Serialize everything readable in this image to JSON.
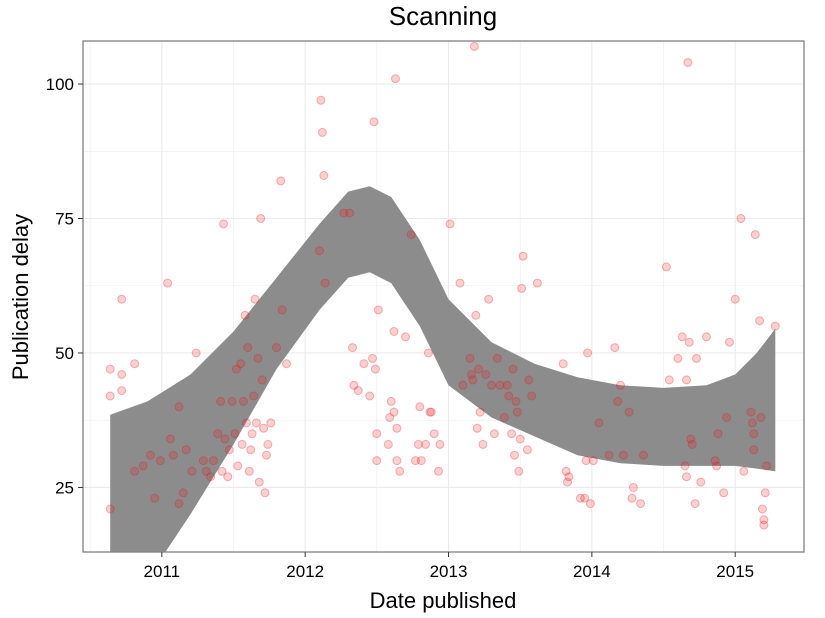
{
  "chart_data": {
    "type": "scatter",
    "title": "Scanning",
    "xlabel": "Date published",
    "ylabel": "Publication delay",
    "xlim": [
      2010.45,
      2015.48
    ],
    "ylim": [
      13,
      108
    ],
    "x_ticks": [
      2011,
      2012,
      2013,
      2014,
      2015
    ],
    "x_tick_labels": [
      "2011",
      "2012",
      "2013",
      "2014",
      "2015"
    ],
    "y_ticks": [
      25,
      50,
      75,
      100
    ],
    "y_tick_labels": [
      "25",
      "50",
      "75",
      "100"
    ],
    "grid": true,
    "colors": {
      "points": "#e8141b",
      "band": "#8c8c8c",
      "grid": "#ebebeb",
      "panel_border": "#7f7f7f"
    },
    "series": [
      {
        "points": [
          [
            2010.64,
            21
          ],
          [
            2010.64,
            47
          ],
          [
            2010.64,
            42
          ],
          [
            2010.72,
            46
          ],
          [
            2010.72,
            43
          ],
          [
            2010.72,
            60
          ],
          [
            2010.81,
            48
          ],
          [
            2010.81,
            28
          ],
          [
            2010.87,
            29
          ],
          [
            2010.92,
            31
          ],
          [
            2010.95,
            23
          ],
          [
            2010.99,
            30
          ],
          [
            2011.04,
            63
          ],
          [
            2011.06,
            34
          ],
          [
            2011.08,
            31
          ],
          [
            2011.12,
            40
          ],
          [
            2011.12,
            22
          ],
          [
            2011.15,
            24
          ],
          [
            2011.17,
            32
          ],
          [
            2011.21,
            28
          ],
          [
            2011.24,
            50
          ],
          [
            2011.29,
            30
          ],
          [
            2011.31,
            28
          ],
          [
            2011.34,
            27
          ],
          [
            2011.36,
            30
          ],
          [
            2011.39,
            35
          ],
          [
            2011.41,
            41
          ],
          [
            2011.42,
            28
          ],
          [
            2011.43,
            74
          ],
          [
            2011.44,
            34
          ],
          [
            2011.46,
            27
          ],
          [
            2011.47,
            32
          ],
          [
            2011.49,
            41
          ],
          [
            2011.51,
            35
          ],
          [
            2011.52,
            47
          ],
          [
            2011.53,
            29
          ],
          [
            2011.55,
            48
          ],
          [
            2011.56,
            33
          ],
          [
            2011.57,
            41
          ],
          [
            2011.58,
            57
          ],
          [
            2011.59,
            37
          ],
          [
            2011.6,
            51
          ],
          [
            2011.61,
            28
          ],
          [
            2011.62,
            32
          ],
          [
            2011.63,
            35
          ],
          [
            2011.64,
            42
          ],
          [
            2011.65,
            60
          ],
          [
            2011.66,
            37
          ],
          [
            2011.67,
            49
          ],
          [
            2011.68,
            26
          ],
          [
            2011.69,
            75
          ],
          [
            2011.7,
            45
          ],
          [
            2011.71,
            36
          ],
          [
            2011.72,
            24
          ],
          [
            2011.73,
            31
          ],
          [
            2011.74,
            33
          ],
          [
            2011.76,
            37
          ],
          [
            2011.8,
            51
          ],
          [
            2011.83,
            82
          ],
          [
            2011.84,
            58
          ],
          [
            2011.87,
            48
          ],
          [
            2012.1,
            69
          ],
          [
            2012.11,
            97
          ],
          [
            2012.12,
            91
          ],
          [
            2012.13,
            83
          ],
          [
            2012.14,
            63
          ],
          [
            2012.27,
            76
          ],
          [
            2012.31,
            76
          ],
          [
            2012.33,
            51
          ],
          [
            2012.34,
            44
          ],
          [
            2012.37,
            43
          ],
          [
            2012.41,
            48
          ],
          [
            2012.45,
            42
          ],
          [
            2012.47,
            49
          ],
          [
            2012.48,
            93
          ],
          [
            2012.49,
            47
          ],
          [
            2012.5,
            35
          ],
          [
            2012.5,
            30
          ],
          [
            2012.51,
            58
          ],
          [
            2012.58,
            33
          ],
          [
            2012.59,
            38
          ],
          [
            2012.6,
            41
          ],
          [
            2012.62,
            54
          ],
          [
            2012.62,
            39
          ],
          [
            2012.63,
            101
          ],
          [
            2012.64,
            36
          ],
          [
            2012.64,
            30
          ],
          [
            2012.66,
            28
          ],
          [
            2012.7,
            53
          ],
          [
            2012.74,
            72
          ],
          [
            2012.77,
            30
          ],
          [
            2012.79,
            33
          ],
          [
            2012.8,
            40
          ],
          [
            2012.81,
            30
          ],
          [
            2012.84,
            33
          ],
          [
            2012.86,
            50
          ],
          [
            2012.87,
            39
          ],
          [
            2012.88,
            39
          ],
          [
            2012.9,
            35
          ],
          [
            2012.93,
            28
          ],
          [
            2012.94,
            33
          ],
          [
            2013.01,
            74
          ],
          [
            2013.08,
            63
          ],
          [
            2013.1,
            44
          ],
          [
            2013.15,
            49
          ],
          [
            2013.16,
            46
          ],
          [
            2013.17,
            45
          ],
          [
            2013.18,
            107
          ],
          [
            2013.19,
            57
          ],
          [
            2013.2,
            36
          ],
          [
            2013.21,
            47
          ],
          [
            2013.22,
            39
          ],
          [
            2013.24,
            33
          ],
          [
            2013.26,
            46
          ],
          [
            2013.28,
            60
          ],
          [
            2013.3,
            44
          ],
          [
            2013.32,
            35
          ],
          [
            2013.34,
            49
          ],
          [
            2013.36,
            44
          ],
          [
            2013.39,
            38
          ],
          [
            2013.41,
            44
          ],
          [
            2013.42,
            42
          ],
          [
            2013.44,
            35
          ],
          [
            2013.45,
            47
          ],
          [
            2013.46,
            31
          ],
          [
            2013.47,
            41
          ],
          [
            2013.48,
            39
          ],
          [
            2013.49,
            28
          ],
          [
            2013.5,
            34
          ],
          [
            2013.51,
            62
          ],
          [
            2013.52,
            68
          ],
          [
            2013.55,
            32
          ],
          [
            2013.56,
            45
          ],
          [
            2013.58,
            42
          ],
          [
            2013.62,
            63
          ],
          [
            2013.8,
            48
          ],
          [
            2013.82,
            28
          ],
          [
            2013.83,
            26
          ],
          [
            2013.84,
            27
          ],
          [
            2013.92,
            23
          ],
          [
            2013.95,
            23
          ],
          [
            2013.96,
            30
          ],
          [
            2013.97,
            50
          ],
          [
            2013.99,
            22
          ],
          [
            2014.01,
            30
          ],
          [
            2014.05,
            37
          ],
          [
            2014.12,
            31
          ],
          [
            2014.16,
            51
          ],
          [
            2014.18,
            41
          ],
          [
            2014.2,
            44
          ],
          [
            2014.22,
            31
          ],
          [
            2014.26,
            39
          ],
          [
            2014.28,
            23
          ],
          [
            2014.29,
            25
          ],
          [
            2014.34,
            22
          ],
          [
            2014.36,
            31
          ],
          [
            2014.52,
            66
          ],
          [
            2014.54,
            45
          ],
          [
            2014.6,
            49
          ],
          [
            2014.63,
            53
          ],
          [
            2014.65,
            29
          ],
          [
            2014.66,
            27
          ],
          [
            2014.66,
            45
          ],
          [
            2014.67,
            104
          ],
          [
            2014.68,
            52
          ],
          [
            2014.69,
            34
          ],
          [
            2014.7,
            33
          ],
          [
            2014.72,
            22
          ],
          [
            2014.73,
            49
          ],
          [
            2014.76,
            26
          ],
          [
            2014.8,
            53
          ],
          [
            2014.86,
            30
          ],
          [
            2014.87,
            29
          ],
          [
            2014.88,
            35
          ],
          [
            2014.92,
            24
          ],
          [
            2014.94,
            38
          ],
          [
            2014.96,
            52
          ],
          [
            2015.0,
            60
          ],
          [
            2015.04,
            75
          ],
          [
            2015.06,
            28
          ],
          [
            2015.11,
            39
          ],
          [
            2015.12,
            37
          ],
          [
            2015.13,
            35
          ],
          [
            2015.13,
            32
          ],
          [
            2015.14,
            72
          ],
          [
            2015.17,
            56
          ],
          [
            2015.18,
            38
          ],
          [
            2015.19,
            21
          ],
          [
            2015.2,
            18
          ],
          [
            2015.2,
            19
          ],
          [
            2015.21,
            24
          ],
          [
            2015.22,
            29
          ],
          [
            2015.28,
            55
          ]
        ]
      }
    ],
    "smooth_band": {
      "x": [
        2010.64,
        2010.9,
        2011.2,
        2011.5,
        2011.8,
        2012.1,
        2012.3,
        2012.45,
        2012.6,
        2012.8,
        2013.0,
        2013.3,
        2013.6,
        2013.9,
        2014.2,
        2014.5,
        2014.8,
        2015.0,
        2015.15,
        2015.28
      ],
      "upper": [
        38.5,
        41,
        46,
        54,
        64,
        74,
        80,
        81,
        79,
        71,
        60,
        52,
        48,
        45.5,
        44,
        43.5,
        44,
        46,
        50,
        54.5
      ],
      "lower": [
        13,
        8,
        20,
        33,
        47,
        58,
        64,
        65,
        63,
        55,
        44,
        38,
        34.5,
        31,
        29.5,
        29,
        29,
        29,
        28.5,
        28
      ]
    }
  }
}
